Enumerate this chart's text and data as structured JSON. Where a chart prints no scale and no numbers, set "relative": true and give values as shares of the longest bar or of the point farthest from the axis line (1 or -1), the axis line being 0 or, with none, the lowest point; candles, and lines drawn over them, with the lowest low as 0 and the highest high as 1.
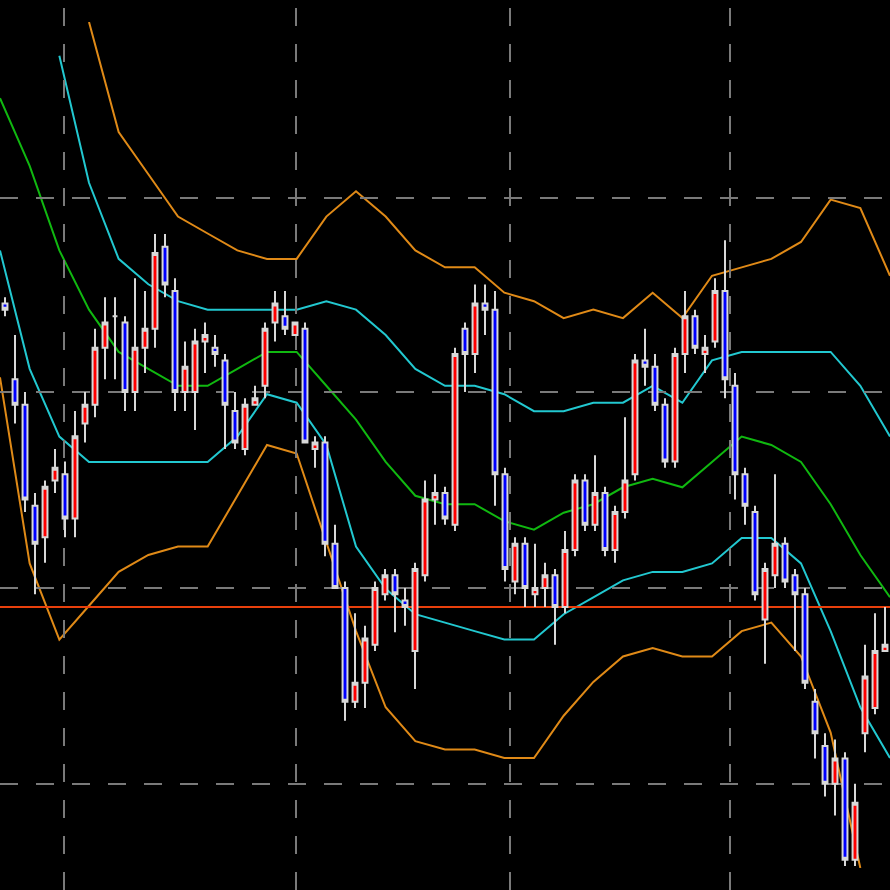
{
  "chart_data": [
    {
      "type": "candlestick",
      "relative": true,
      "grid": true,
      "categories": [
        null,
        null,
        null,
        null,
        null,
        null,
        null,
        null,
        null,
        null,
        null,
        null,
        null,
        null,
        null,
        null,
        null,
        null,
        null,
        null,
        null,
        null,
        null,
        null,
        null,
        null,
        null,
        null,
        null,
        null,
        null,
        null,
        null,
        null,
        null,
        null,
        null,
        null,
        null,
        null,
        null,
        null,
        null,
        null,
        null,
        null,
        null,
        null,
        null,
        null,
        null,
        null,
        null,
        null,
        null,
        null,
        null,
        null,
        null,
        null,
        null,
        null,
        null,
        null,
        null,
        null,
        null,
        null,
        null,
        null,
        null,
        null,
        null,
        null,
        null,
        null,
        null,
        null,
        null,
        null,
        null,
        null,
        null,
        null,
        null,
        null,
        null,
        null,
        null
      ],
      "ohlc": [
        [
          0.89,
          0.9,
          0.87,
          0.88
        ],
        [
          0.77,
          0.84,
          0.7,
          0.73
        ],
        [
          0.73,
          0.75,
          0.56,
          0.58
        ],
        [
          0.57,
          0.59,
          0.43,
          0.51
        ],
        [
          0.52,
          0.61,
          0.48,
          0.6
        ],
        [
          0.61,
          0.66,
          0.59,
          0.63
        ],
        [
          0.62,
          0.64,
          0.52,
          0.55
        ],
        [
          0.55,
          0.72,
          0.52,
          0.68
        ],
        [
          0.7,
          0.75,
          0.67,
          0.73
        ],
        [
          0.73,
          0.85,
          0.71,
          0.82
        ],
        [
          0.82,
          0.9,
          0.77,
          0.86
        ],
        [
          0.87,
          0.9,
          0.77,
          0.87
        ],
        [
          0.86,
          0.87,
          0.72,
          0.75
        ],
        [
          0.75,
          0.93,
          0.72,
          0.82
        ],
        [
          0.82,
          0.91,
          0.78,
          0.85
        ],
        [
          0.85,
          1,
          0.82,
          0.97
        ],
        [
          0.98,
          1,
          0.9,
          0.92
        ],
        [
          0.91,
          0.93,
          0.72,
          0.75
        ],
        [
          0.75,
          0.83,
          0.72,
          0.79
        ],
        [
          0.75,
          0.85,
          0.69,
          0.83
        ],
        [
          0.83,
          0.86,
          0.78,
          0.84
        ],
        [
          0.82,
          0.84,
          0.79,
          0.81
        ],
        [
          0.8,
          0.81,
          0.66,
          0.73
        ],
        [
          0.72,
          0.75,
          0.66,
          0.67
        ],
        [
          0.66,
          0.74,
          0.65,
          0.73
        ],
        [
          0.73,
          0.76,
          0.73,
          0.74
        ],
        [
          0.76,
          0.86,
          0.74,
          0.85
        ],
        [
          0.86,
          0.91,
          0.83,
          0.89
        ],
        [
          0.87,
          0.91,
          0.84,
          0.85
        ],
        [
          0.84,
          0.86,
          0.84,
          0.86
        ],
        [
          0.85,
          0.86,
          0.67,
          0.67
        ],
        [
          0.66,
          0.68,
          0.63,
          0.67
        ],
        [
          0.67,
          0.68,
          0.49,
          0.51
        ],
        [
          0.51,
          0.54,
          0.44,
          0.44
        ],
        [
          0.44,
          0.45,
          0.23,
          0.26
        ],
        [
          0.26,
          0.4,
          0.25,
          0.29
        ],
        [
          0.29,
          0.38,
          0.25,
          0.36
        ],
        [
          0.35,
          0.45,
          0.34,
          0.44
        ],
        [
          0.43,
          0.47,
          0.42,
          0.46
        ],
        [
          0.46,
          0.47,
          0.37,
          0.43
        ],
        [
          0.42,
          0.44,
          0.38,
          0.41
        ],
        [
          0.34,
          0.48,
          0.28,
          0.47
        ],
        [
          0.46,
          0.61,
          0.45,
          0.58
        ],
        [
          0.58,
          0.62,
          0.54,
          0.59
        ],
        [
          0.59,
          0.6,
          0.54,
          0.55
        ],
        [
          0.54,
          0.82,
          0.53,
          0.81
        ],
        [
          0.85,
          0.86,
          0.75,
          0.81
        ],
        [
          0.81,
          0.92,
          0.78,
          0.89
        ],
        [
          0.89,
          0.92,
          0.84,
          0.88
        ],
        [
          0.88,
          0.91,
          0.57,
          0.62
        ],
        [
          0.62,
          0.63,
          0.45,
          0.47
        ],
        [
          0.45,
          0.52,
          0.43,
          0.51
        ],
        [
          0.51,
          0.52,
          0.41,
          0.44
        ],
        [
          0.43,
          0.51,
          0.41,
          0.44
        ],
        [
          0.44,
          0.48,
          0.41,
          0.46
        ],
        [
          0.46,
          0.47,
          0.35,
          0.41
        ],
        [
          0.41,
          0.53,
          0.4,
          0.5
        ],
        [
          0.5,
          0.62,
          0.49,
          0.61
        ],
        [
          0.61,
          0.62,
          0.53,
          0.54
        ],
        [
          0.54,
          0.65,
          0.53,
          0.59
        ],
        [
          0.59,
          0.6,
          0.49,
          0.5
        ],
        [
          0.5,
          0.57,
          0.48,
          0.56
        ],
        [
          0.56,
          0.71,
          0.55,
          0.61
        ],
        [
          0.62,
          0.81,
          0.61,
          0.8
        ],
        [
          0.8,
          0.85,
          0.76,
          0.79
        ],
        [
          0.79,
          0.81,
          0.72,
          0.73
        ],
        [
          0.73,
          0.74,
          0.63,
          0.64
        ],
        [
          0.64,
          0.82,
          0.63,
          0.81
        ],
        [
          0.81,
          0.91,
          0.78,
          0.87
        ],
        [
          0.87,
          0.88,
          0.81,
          0.82
        ],
        [
          0.81,
          0.84,
          0.78,
          0.82
        ],
        [
          0.83,
          0.93,
          0.82,
          0.91
        ],
        [
          0.91,
          0.99,
          0.74,
          0.77
        ],
        [
          0.76,
          0.78,
          0.58,
          0.62
        ],
        [
          0.62,
          0.63,
          0.54,
          0.57
        ],
        [
          0.56,
          0.57,
          0.42,
          0.43
        ],
        [
          0.39,
          0.48,
          0.32,
          0.47
        ],
        [
          0.46,
          0.62,
          0.44,
          0.51
        ],
        [
          0.51,
          0.52,
          0.44,
          0.45
        ],
        [
          0.46,
          0.47,
          0.34,
          0.43
        ],
        [
          0.43,
          0.44,
          0.28,
          0.29
        ],
        [
          0.26,
          0.28,
          0.17,
          0.21
        ],
        [
          0.19,
          0.21,
          0.11,
          0.13
        ],
        [
          0.13,
          0.2,
          0.08,
          0.17
        ],
        [
          0.17,
          0.18,
          0,
          0.01
        ],
        [
          0.01,
          0.13,
          0,
          0.1
        ],
        [
          0.21,
          0.35,
          0.18,
          0.3
        ],
        [
          0.25,
          0.4,
          0.24,
          0.34
        ],
        [
          0.34,
          0.41,
          0.34,
          0.35
        ]
      ],
      "colors": [
        "#0000ff",
        "#0000ff",
        "#0000ff",
        "#0000ff",
        "#ff0000",
        "#ff0000",
        "#0000ff",
        "#ff0000",
        "#ff0000",
        "#ff0000",
        "#ff0000",
        "#d8d8d8",
        "#0000ff",
        "#ff0000",
        "#ff0000",
        "#ff0000",
        "#0000ff",
        "#0000ff",
        "#ff0000",
        "#ff0000",
        "#ff0000",
        "#0000ff",
        "#0000ff",
        "#0000ff",
        "#ff0000",
        "#ff0000",
        "#ff0000",
        "#ff0000",
        "#0000ff",
        "#ff0000",
        "#0000ff",
        "#ff0000",
        "#0000ff",
        "#0000ff",
        "#0000ff",
        "#ff0000",
        "#ff0000",
        "#ff0000",
        "#ff0000",
        "#0000ff",
        "#0000ff",
        "#ff0000",
        "#ff0000",
        "#ff0000",
        "#0000ff",
        "#ff0000",
        "#0000ff",
        "#ff0000",
        "#0000ff",
        "#0000ff",
        "#0000ff",
        "#ff0000",
        "#0000ff",
        "#ff0000",
        "#ff0000",
        "#0000ff",
        "#ff0000",
        "#ff0000",
        "#0000ff",
        "#ff0000",
        "#0000ff",
        "#ff0000",
        "#ff0000",
        "#ff0000",
        "#0000ff",
        "#0000ff",
        "#0000ff",
        "#ff0000",
        "#ff0000",
        "#0000ff",
        "#ff0000",
        "#ff0000",
        "#0000ff",
        "#0000ff",
        "#0000ff",
        "#0000ff",
        "#ff0000",
        "#ff0000",
        "#0000ff",
        "#0000ff",
        "#0000ff",
        "#0000ff",
        "#0000ff",
        "#ff0000",
        "#0000ff",
        "#ff0000",
        "#ff0000",
        "#ff0000",
        "#ff0000"
      ],
      "ref_lines": [
        {
          "axis": "y",
          "value": 0.41,
          "color": "#e8400c"
        }
      ]
    },
    {
      "type": "line",
      "relative": true,
      "categories": [
        null,
        null,
        null,
        null,
        null,
        null,
        null,
        null,
        null,
        null,
        null,
        null,
        null,
        null,
        null,
        null,
        null,
        null,
        null,
        null,
        null,
        null,
        null,
        null,
        null,
        null,
        null,
        null,
        null,
        null,
        null
      ],
      "series": [
        {
          "color": "#e08a17",
          "values": [
            null,
            null,
            null,
            1,
            0.87,
            0.82,
            0.77,
            0.75,
            0.73,
            0.72,
            0.72,
            0.77,
            0.8,
            0.77,
            0.73,
            0.71,
            0.71,
            0.68,
            0.67,
            0.65,
            0.66,
            0.65,
            0.68,
            0.65,
            0.7,
            0.71,
            0.72,
            0.74,
            0.79,
            0.78,
            0.7
          ]
        },
        {
          "color": "#22c8d0",
          "values": [
            null,
            null,
            0.96,
            0.81,
            0.72,
            0.69,
            0.67,
            0.66,
            0.66,
            0.66,
            0.66,
            0.67,
            0.66,
            0.63,
            0.59,
            0.57,
            0.57,
            0.56,
            0.54,
            0.54,
            0.55,
            0.55,
            0.57,
            0.55,
            0.6,
            0.61,
            0.61,
            0.61,
            0.61,
            0.57,
            0.51
          ]
        },
        {
          "color": "#10b810",
          "values": [
            0.91,
            0.83,
            0.73,
            0.66,
            0.61,
            0.59,
            0.57,
            0.57,
            0.59,
            0.61,
            0.61,
            0.57,
            0.53,
            0.48,
            0.44,
            0.43,
            0.43,
            0.41,
            0.4,
            0.42,
            0.43,
            0.45,
            0.46,
            0.45,
            0.48,
            0.51,
            0.5,
            0.48,
            0.43,
            0.37,
            0.32
          ]
        },
        {
          "color": "#22c8d0",
          "values": [
            0.73,
            0.59,
            0.51,
            0.48,
            0.48,
            0.48,
            0.48,
            0.48,
            0.51,
            0.56,
            0.55,
            0.5,
            0.38,
            0.33,
            0.3,
            0.29,
            0.28,
            0.27,
            0.27,
            0.3,
            0.32,
            0.34,
            0.35,
            0.35,
            0.36,
            0.39,
            0.39,
            0.36,
            0.28,
            0.19,
            0.13
          ]
        },
        {
          "color": "#e08a17",
          "values": [
            0.58,
            0.36,
            0.27,
            0.31,
            0.35,
            0.37,
            0.38,
            0.38,
            0.44,
            0.5,
            0.49,
            null,
            0.28,
            0.19,
            0.15,
            0.14,
            0.14,
            0.13,
            0.13,
            0.18,
            0.22,
            0.25,
            0.26,
            0.25,
            0.25,
            0.28,
            0.29,
            0.25,
            0.16,
            0,
            null
          ]
        }
      ]
    }
  ]
}
